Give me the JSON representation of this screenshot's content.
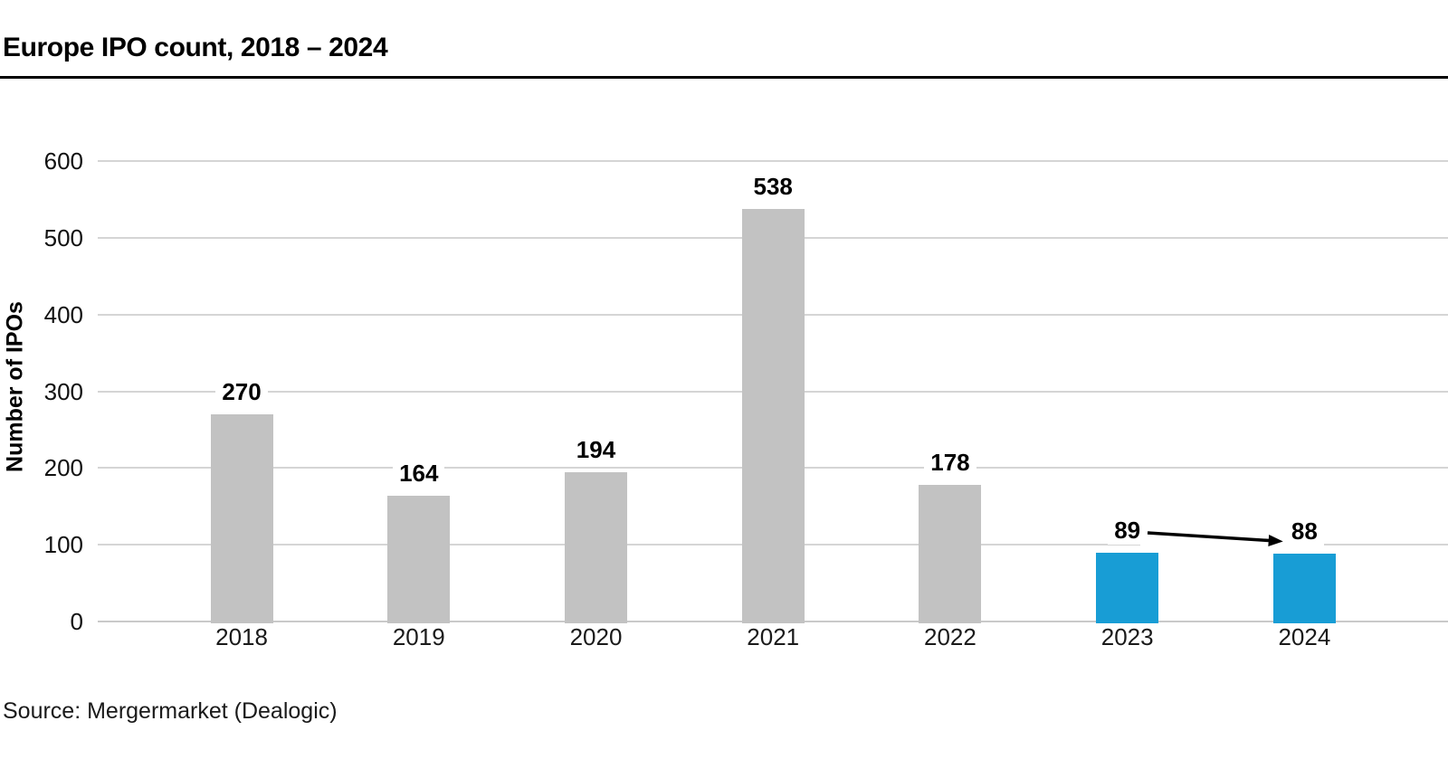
{
  "header": {
    "title": "Europe IPO count, 2018 – 2024"
  },
  "footer": {
    "source": "Source: Mergermarket (Dealogic)"
  },
  "chart_data": {
    "type": "bar",
    "title": "Europe IPO count, 2018 – 2024",
    "categories": [
      "2018",
      "2019",
      "2020",
      "2021",
      "2022",
      "2023",
      "2024"
    ],
    "values": [
      270,
      164,
      194,
      538,
      178,
      89,
      88
    ],
    "xlabel": "",
    "ylabel": "Number of IPOs",
    "ylim": [
      0,
      600
    ],
    "yticks": [
      0,
      100,
      200,
      300,
      400,
      500,
      600
    ],
    "grid": true,
    "legend": false,
    "colors": {
      "bar_default": "#c2c2c2",
      "bar_highlight": "#189dd5",
      "gridline": "#d5d5d5",
      "text": "#000000"
    },
    "highlight_categories": [
      "2023",
      "2024"
    ],
    "annotations": [
      {
        "type": "arrow",
        "from_category": "2023",
        "to_category": "2024",
        "from_value": 89,
        "to_value": 88,
        "color": "#000000"
      }
    ]
  }
}
